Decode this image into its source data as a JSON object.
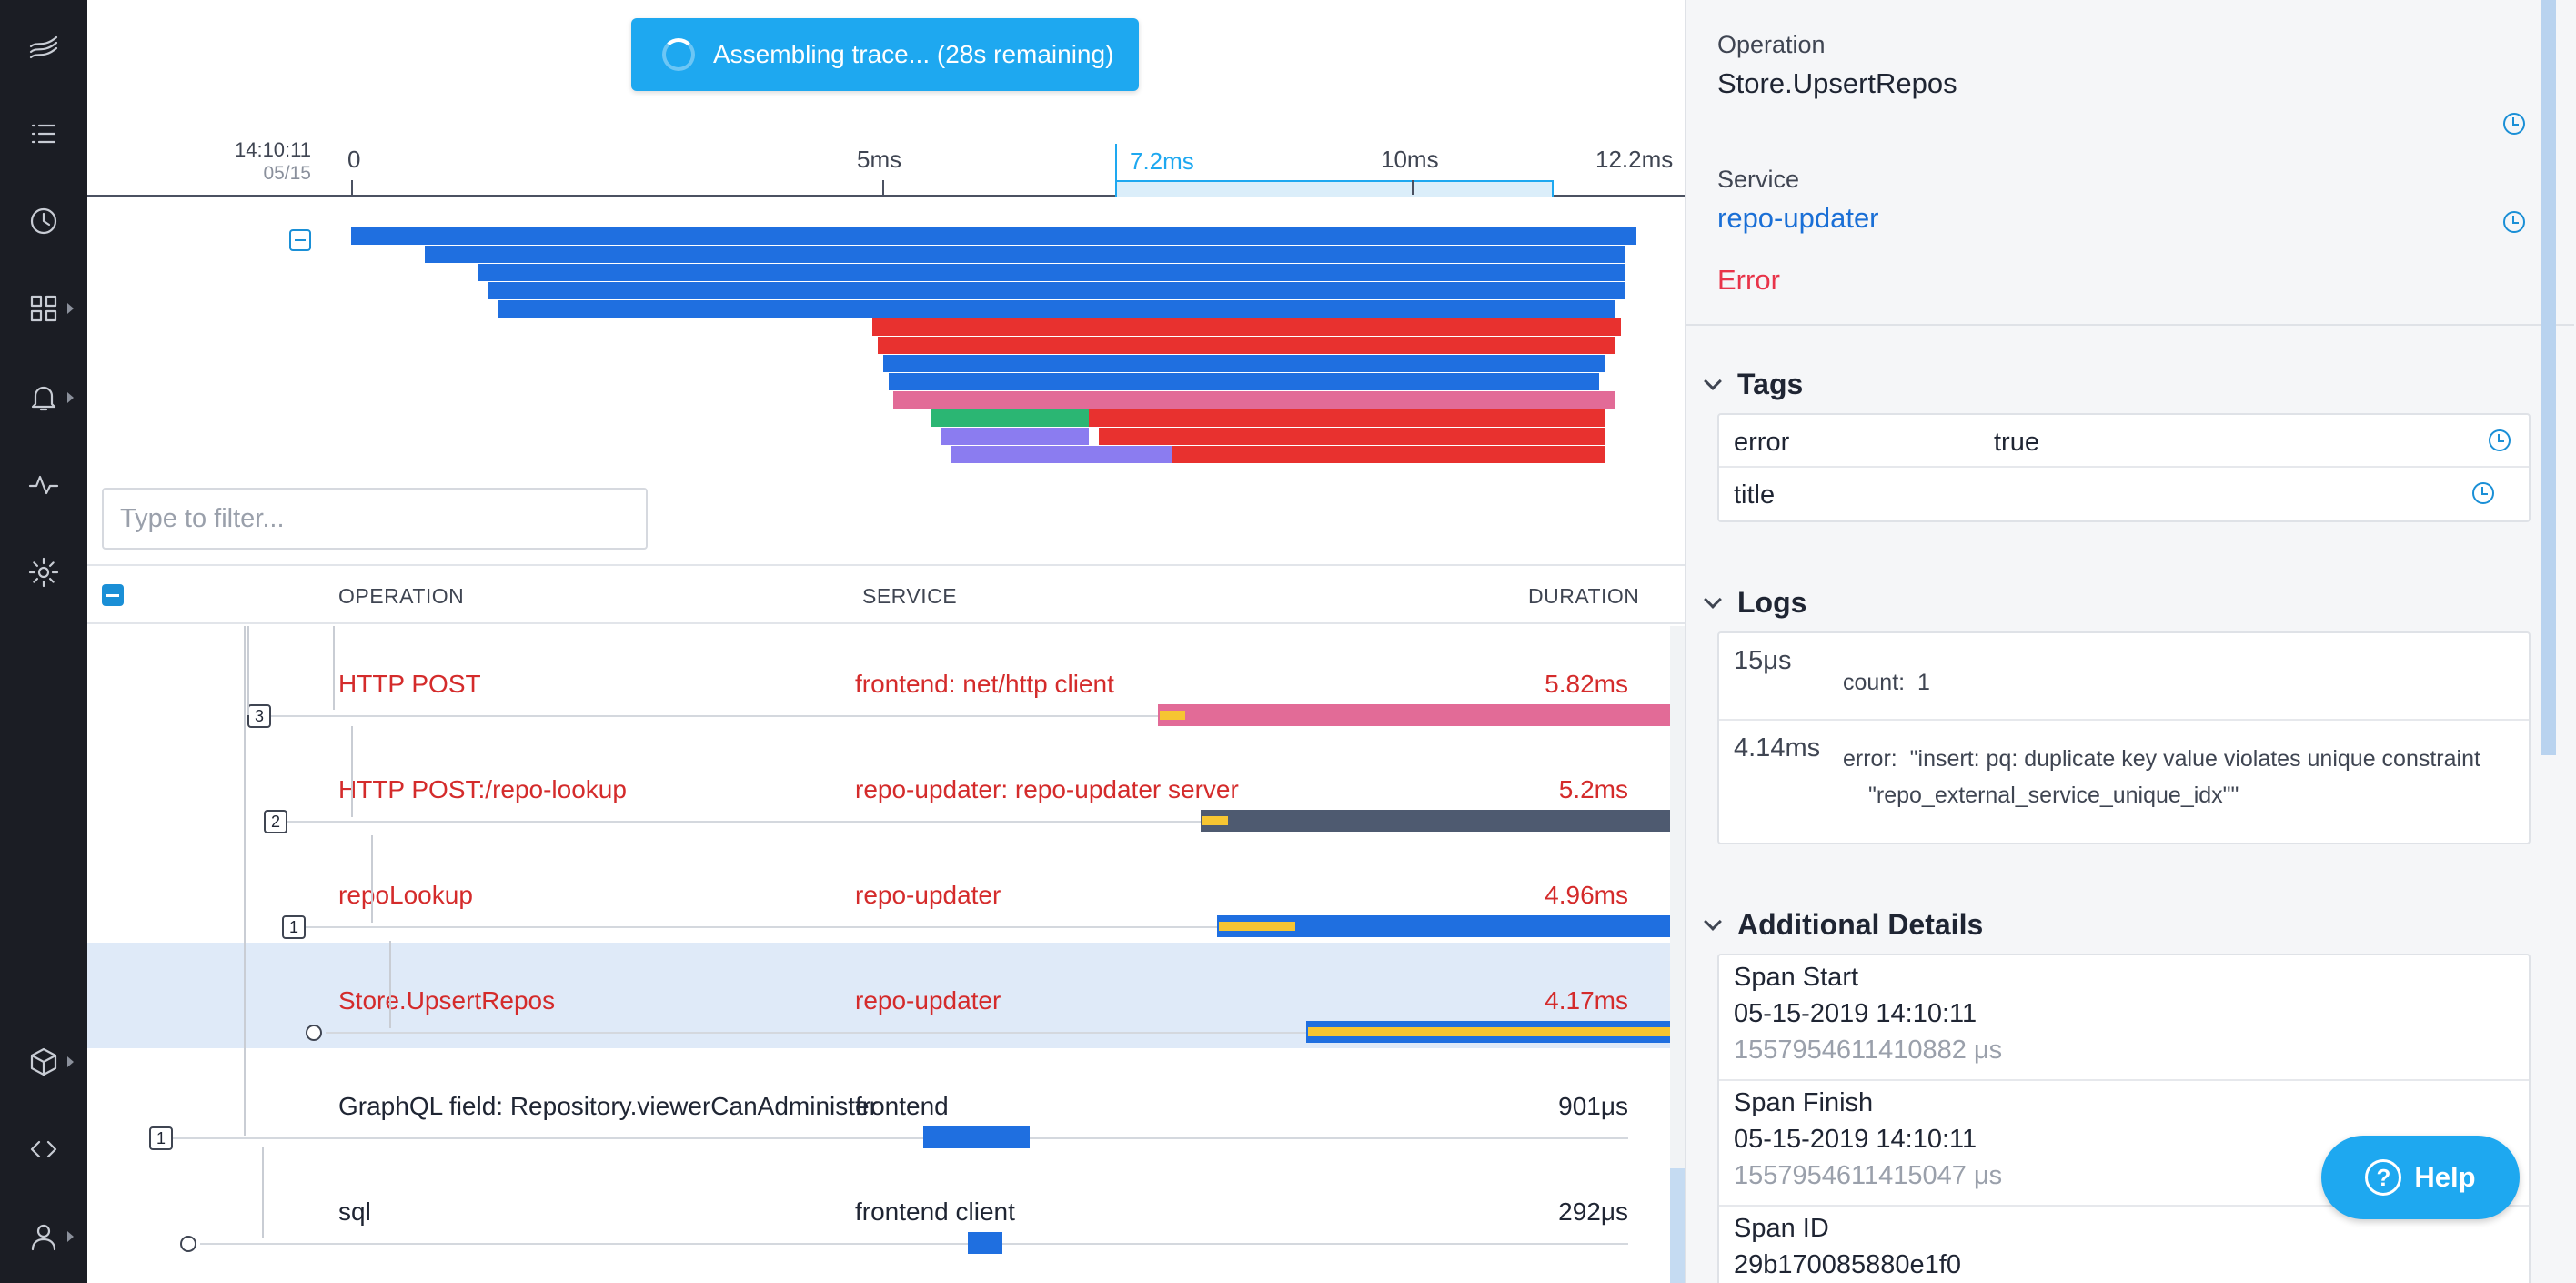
{
  "nav": {
    "items": [
      {
        "icon": "logo-icon"
      },
      {
        "icon": "list-icon"
      },
      {
        "icon": "clock-icon"
      },
      {
        "icon": "dashboard-icon"
      },
      {
        "icon": "bell-icon"
      },
      {
        "icon": "activity-icon"
      },
      {
        "icon": "gear-icon"
      },
      {
        "icon": "cube-icon"
      },
      {
        "icon": "code-icon"
      },
      {
        "icon": "user-icon"
      }
    ]
  },
  "toast": {
    "text": "Assembling trace... (28s remaining)"
  },
  "timeline": {
    "clock_time": "14:10:11",
    "clock_date": "05/15",
    "ticks": [
      "0",
      "5ms",
      "10ms",
      "12.2ms"
    ],
    "selection_label": "7.2ms"
  },
  "filter": {
    "placeholder": "Type to filter..."
  },
  "table": {
    "headers": {
      "operation": "OPERATION",
      "service": "SERVICE",
      "duration": "DURATION"
    },
    "rows": [
      {
        "operation": "HTTP POST",
        "service": "frontend: net/http client",
        "duration": "5.82ms",
        "error": true,
        "count": "3",
        "color": "#e26b97",
        "start_ms": 6.84,
        "dur_ms": 5.82
      },
      {
        "operation": "HTTP POST:/repo-lookup",
        "service": "repo-updater: repo-updater server",
        "duration": "5.2ms",
        "error": true,
        "count": "2",
        "color": "#4e5a70",
        "start_ms": 7.2,
        "dur_ms": 5.2
      },
      {
        "operation": "repoLookup",
        "service": "repo-updater",
        "duration": "4.96ms",
        "error": true,
        "count": "1",
        "color": "#1f6fe0",
        "start_ms": 7.34,
        "dur_ms": 4.96
      },
      {
        "operation": "Store.UpsertRepos",
        "service": "repo-updater",
        "duration": "4.17ms",
        "error": true,
        "count": "",
        "color": "#1f6fe0",
        "start_ms": 8.1,
        "dur_ms": 4.17,
        "selected": true
      },
      {
        "operation": "GraphQL field: Repository.viewerCanAdminister",
        "service": "frontend",
        "duration": "901μs",
        "error": false,
        "count": "1",
        "color": "#1f6fe0",
        "start_ms": 4.85,
        "dur_ms": 0.9
      },
      {
        "operation": "sql",
        "service": "frontend client",
        "duration": "292μs",
        "error": false,
        "count": "",
        "color": "#1f6fe0",
        "start_ms": 5.23,
        "dur_ms": 0.29
      }
    ]
  },
  "panel": {
    "operation_label": "Operation",
    "operation_value": "Store.UpsertRepos",
    "service_label": "Service",
    "service_value": "repo-updater",
    "error_text": "Error",
    "tags_title": "Tags",
    "tags": [
      {
        "key": "error",
        "value": "true"
      },
      {
        "key": "title",
        "value": ""
      }
    ],
    "logs_title": "Logs",
    "logs": [
      {
        "time": "15μs",
        "key": "count:",
        "value": "1"
      },
      {
        "time": "4.14ms",
        "key": "error:",
        "value": "\"insert: pq: duplicate key value violates unique constraint \"repo_external_service_unique_idx\"\""
      }
    ],
    "details_title": "Additional Details",
    "details": [
      {
        "label": "Span Start",
        "value": "05-15-2019 14:10:11",
        "micro": "1557954611410882 μs"
      },
      {
        "label": "Span Finish",
        "value": "05-15-2019 14:10:11",
        "micro": "1557954611415047 μs"
      },
      {
        "label": "Span ID",
        "value": "29b170085880e1f0",
        "micro": ""
      }
    ]
  },
  "help": {
    "label": "Help"
  },
  "colors": {
    "accent": "#1ea8f0",
    "error": "#e8312f",
    "ok": "#1f6fe0",
    "warn": "#f6c532"
  }
}
